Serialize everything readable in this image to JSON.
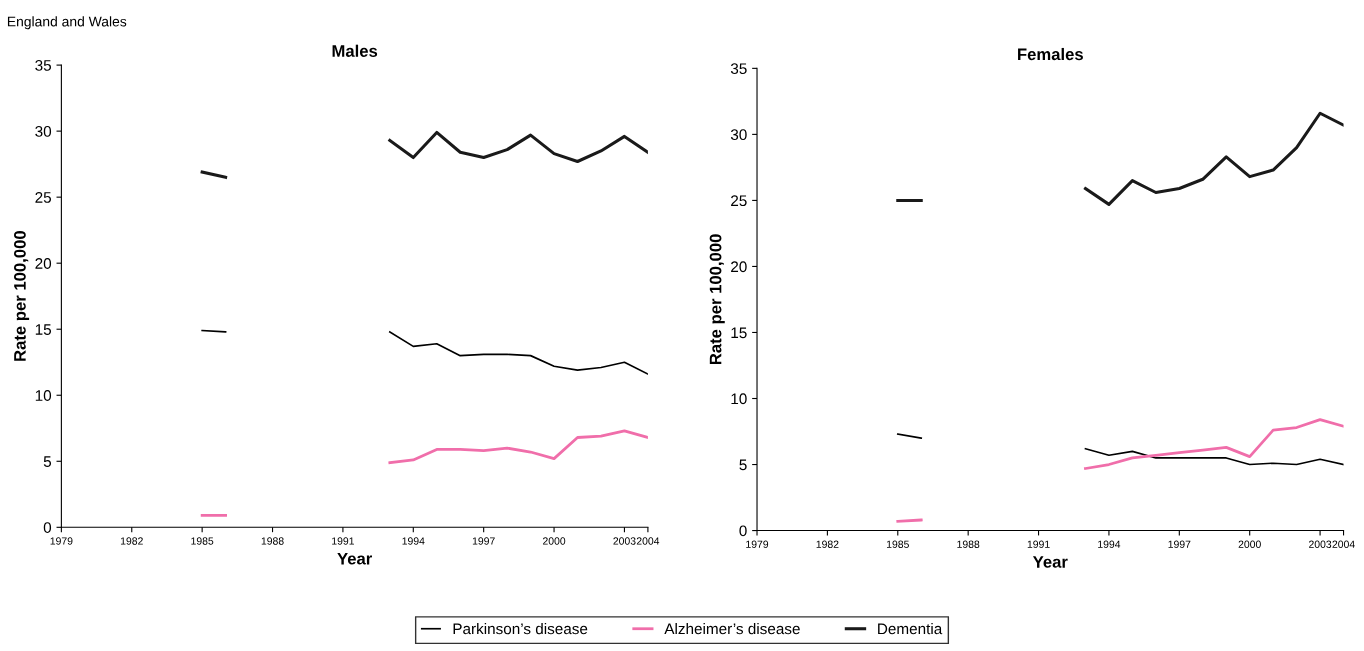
{
  "chart_data": [
    {
      "type": "line",
      "title": "Males",
      "xlabel": "Year",
      "ylabel": "Rate per 100,000",
      "annotations": [
        "England and Wales"
      ],
      "x": [
        1985,
        1986,
        1987,
        1988,
        1989,
        1990,
        1991,
        1992,
        1993,
        1994,
        1995,
        1996,
        1997,
        1998,
        1999,
        2000,
        2001,
        2002,
        2003,
        2004
      ],
      "series": [
        {
          "name": "Parkinson’s disease",
          "color": "#000000",
          "values": [
            14.9,
            14.8,
            null,
            null,
            null,
            null,
            null,
            null,
            14.8,
            13.7,
            13.9,
            13.0,
            13.1,
            13.1,
            13.0,
            12.2,
            11.9,
            12.1,
            12.5,
            11.6
          ]
        },
        {
          "name": "Alzheimer’s disease",
          "color": "#f06eaa",
          "values": [
            0.9,
            0.9,
            null,
            null,
            null,
            null,
            null,
            null,
            4.9,
            5.1,
            5.9,
            5.9,
            5.8,
            6.0,
            5.7,
            5.2,
            6.8,
            6.9,
            7.3,
            6.8
          ]
        },
        {
          "name": "Dementia",
          "color": "#1a1a1a",
          "values": [
            26.9,
            26.5,
            null,
            null,
            null,
            null,
            null,
            null,
            29.3,
            28.0,
            29.9,
            28.4,
            28.0,
            28.6,
            29.7,
            28.3,
            27.7,
            28.5,
            29.6,
            28.4
          ]
        }
      ],
      "xlim": [
        1979,
        2004
      ],
      "xticks": [
        1979,
        1982,
        1985,
        1988,
        1991,
        1994,
        1997,
        2000,
        2003,
        2004
      ],
      "ylim": [
        0,
        35
      ],
      "yticks": [
        0,
        5,
        10,
        15,
        20,
        25,
        30,
        35
      ],
      "grid": false,
      "legend": "bottom"
    },
    {
      "type": "line",
      "title": "Females",
      "xlabel": "Year",
      "ylabel": "Rate per 100,000",
      "x": [
        1985,
        1986,
        1987,
        1988,
        1989,
        1990,
        1991,
        1992,
        1993,
        1994,
        1995,
        1996,
        1997,
        1998,
        1999,
        2000,
        2001,
        2002,
        2003,
        2004
      ],
      "series": [
        {
          "color": "#000000",
          "values": [
            7.3,
            7.0,
            null,
            null,
            null,
            null,
            null,
            null,
            6.2,
            5.7,
            6.0,
            5.5,
            5.5,
            5.5,
            5.5,
            5.0,
            5.1,
            5.0,
            5.4,
            5.0
          ]
        },
        {
          "color": "#f06eaa",
          "values": [
            0.7,
            0.8,
            null,
            null,
            null,
            null,
            null,
            null,
            4.7,
            5.0,
            5.5,
            5.7,
            5.9,
            6.1,
            6.3,
            5.6,
            7.6,
            7.8,
            8.4,
            7.9
          ]
        },
        {
          "color": "#1a1a1a",
          "values": [
            25.0,
            25.0,
            null,
            null,
            null,
            null,
            null,
            null,
            25.9,
            24.7,
            26.5,
            25.6,
            25.9,
            26.6,
            28.3,
            26.8,
            27.3,
            29.0,
            31.6,
            30.7
          ]
        }
      ],
      "xlim": [
        1979,
        2004
      ],
      "xticks": [
        1979,
        1982,
        1985,
        1988,
        1991,
        1994,
        1997,
        2000,
        2003,
        2004
      ],
      "ylim": [
        0,
        35
      ],
      "yticks": [
        0,
        5,
        10,
        15,
        20,
        25,
        30,
        35
      ],
      "grid": false
    }
  ]
}
